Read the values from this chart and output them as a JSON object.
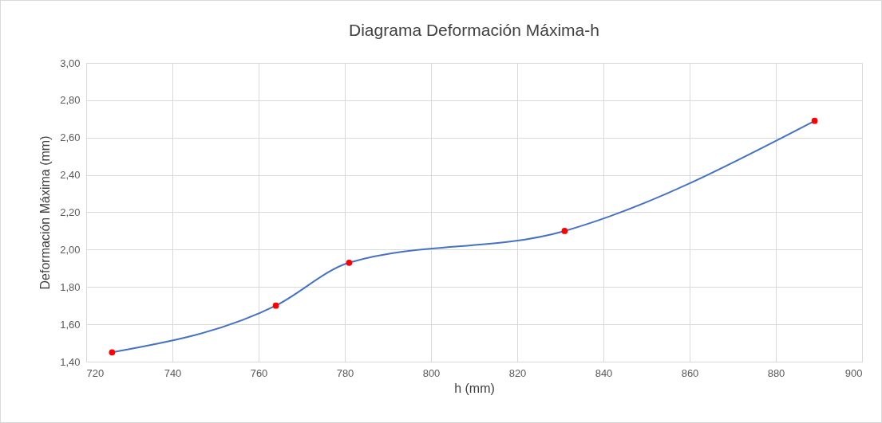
{
  "chart_data": {
    "type": "line",
    "title": "Diagrama Deformación Máxima-h",
    "xlabel": "h (mm)",
    "ylabel": "Deformación Máxima (mm)",
    "x": [
      726,
      764,
      781,
      831,
      889
    ],
    "series": [
      {
        "color": "#4472c4",
        "marker": "none",
        "values": [
          1.45,
          1.7,
          1.93,
          2.1,
          2.69
        ]
      },
      {
        "type": "scatter",
        "color": "#ff0000",
        "marker": "circle",
        "values": [
          1.45,
          1.7,
          1.93,
          2.1,
          2.69
        ]
      }
    ],
    "xlim": [
      720,
      900
    ],
    "xticks": [
      720,
      740,
      760,
      780,
      800,
      820,
      840,
      860,
      880,
      900
    ],
    "ylim": [
      1.4,
      3.0
    ],
    "yticks": [
      {
        "value": 1.4,
        "label": "1,40"
      },
      {
        "value": 1.6,
        "label": "1,60"
      },
      {
        "value": 1.8,
        "label": "1,80"
      },
      {
        "value": 2.0,
        "label": "2,00"
      },
      {
        "value": 2.2,
        "label": "2,20"
      },
      {
        "value": 2.4,
        "label": "2,40"
      },
      {
        "value": 2.6,
        "label": "2,60"
      },
      {
        "value": 2.8,
        "label": "2,80"
      },
      {
        "value": 3.0,
        "label": "3,00"
      }
    ],
    "grid": true
  }
}
